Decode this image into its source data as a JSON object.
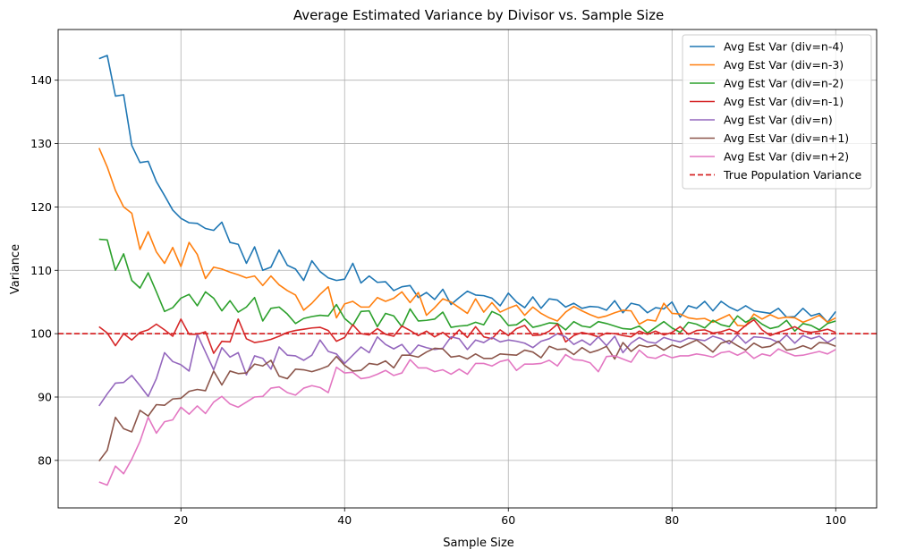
{
  "chart_data": {
    "type": "line",
    "title": "Average Estimated Variance by Divisor vs. Sample Size",
    "xlabel": "Sample Size",
    "ylabel": "Variance",
    "xlim": [
      5,
      105
    ],
    "ylim": [
      72.5,
      148
    ],
    "xticks": [
      20,
      40,
      60,
      80,
      100
    ],
    "yticks": [
      80,
      90,
      100,
      110,
      120,
      130,
      140
    ],
    "grid": true,
    "legend_position": "top-right",
    "x_start": 10,
    "series": [
      {
        "name": "Avg Est Var (div=n-4)",
        "color": "#1f77b4",
        "style": "solid",
        "values": [
          143.4,
          143.9,
          137.5,
          137.7,
          129.7,
          127.0,
          127.2,
          124.0,
          121.8,
          119.5,
          118.2,
          117.5,
          117.4,
          116.6,
          116.3,
          117.6,
          114.4,
          114.1,
          111.1,
          113.7,
          110.0,
          110.5,
          113.2,
          110.8,
          110.2,
          108.4,
          111.5,
          109.8,
          108.8,
          108.4,
          108.6,
          111.1,
          108.0,
          109.1,
          108.1,
          108.2,
          106.8,
          107.4,
          107.6,
          105.7,
          106.5,
          105.4,
          107.0,
          104.6,
          105.7,
          106.7,
          106.1,
          106.0,
          105.6,
          104.4,
          106.4,
          105.0,
          104.1,
          105.8,
          104.0,
          105.5,
          105.3,
          104.2,
          104.8,
          104.0,
          104.3,
          104.2,
          103.7,
          105.2,
          103.3,
          104.8,
          104.5,
          103.3,
          104.1,
          103.9,
          105.0,
          102.6,
          104.4,
          104.0,
          105.1,
          103.6,
          105.1,
          104.2,
          103.6,
          104.4,
          103.6,
          103.4,
          103.2,
          104.0,
          102.6,
          102.7,
          104.0,
          102.8,
          103.2,
          101.8,
          103.5
        ]
      },
      {
        "name": "Avg Est Var (div=n-3)",
        "color": "#ff7f0e",
        "style": "solid",
        "values": [
          129.3,
          126.3,
          122.6,
          120.0,
          119.0,
          113.3,
          116.1,
          112.9,
          111.1,
          113.6,
          110.6,
          114.4,
          112.5,
          108.7,
          110.5,
          110.2,
          109.7,
          109.3,
          108.8,
          109.1,
          107.6,
          109.1,
          107.7,
          106.8,
          106.1,
          103.7,
          104.8,
          106.2,
          107.4,
          102.5,
          104.7,
          105.1,
          104.2,
          104.2,
          105.7,
          105.1,
          105.6,
          106.6,
          104.9,
          106.5,
          102.9,
          104.1,
          105.5,
          105.0,
          104.1,
          103.2,
          105.5,
          103.4,
          104.9,
          103.4,
          104.0,
          104.5,
          102.9,
          104.2,
          103.2,
          102.5,
          102.0,
          103.4,
          104.3,
          103.6,
          103.0,
          102.5,
          102.8,
          103.3,
          103.7,
          103.6,
          101.5,
          102.2,
          102.0,
          104.8,
          103.2,
          103.1,
          102.5,
          102.3,
          102.4,
          101.8,
          102.4,
          103.0,
          101.3,
          101.2,
          103.1,
          102.3,
          103.0,
          102.4,
          102.6,
          102.5,
          101.8,
          102.3,
          102.9,
          101.8,
          102.5
        ]
      },
      {
        "name": "Avg Est Var (div=n-2)",
        "color": "#2ca02c",
        "style": "solid",
        "values": [
          114.9,
          114.8,
          110.0,
          112.6,
          108.4,
          107.2,
          109.6,
          106.6,
          103.5,
          104.1,
          105.6,
          106.2,
          104.4,
          106.6,
          105.6,
          103.6,
          105.2,
          103.4,
          104.2,
          105.7,
          102.0,
          104.0,
          104.2,
          103.1,
          101.6,
          102.4,
          102.7,
          102.9,
          102.8,
          104.6,
          102.4,
          101.3,
          103.5,
          103.6,
          101.1,
          103.2,
          102.8,
          101.1,
          103.9,
          102.0,
          102.1,
          102.3,
          103.4,
          101.0,
          101.2,
          101.3,
          101.8,
          101.4,
          103.5,
          102.9,
          101.3,
          101.4,
          102.3,
          101.0,
          101.3,
          101.7,
          101.6,
          100.6,
          101.9,
          101.2,
          101.0,
          101.9,
          101.6,
          101.2,
          100.8,
          100.7,
          101.2,
          100.1,
          101.0,
          101.9,
          100.9,
          100.2,
          101.8,
          101.5,
          100.9,
          102.1,
          101.4,
          101.1,
          102.8,
          101.8,
          102.5,
          101.5,
          100.8,
          101.1,
          102.1,
          100.4,
          101.6,
          101.3,
          100.6,
          101.6,
          102.0
        ]
      },
      {
        "name": "Avg Est Var (div=n-1)",
        "color": "#d62728",
        "style": "solid",
        "values": [
          101.1,
          100.1,
          98.1,
          100.0,
          99.0,
          100.2,
          100.6,
          101.5,
          100.6,
          99.6,
          102.3,
          99.9,
          99.9,
          100.3,
          96.9,
          98.8,
          98.7,
          102.3,
          99.2,
          98.6,
          98.8,
          99.1,
          99.6,
          100.2,
          100.5,
          100.7,
          100.9,
          101.0,
          100.5,
          98.8,
          99.4,
          101.4,
          100.0,
          99.8,
          100.8,
          99.9,
          99.6,
          101.2,
          100.5,
          99.7,
          100.4,
          99.5,
          100.2,
          99.2,
          100.6,
          99.4,
          101.1,
          99.5,
          99.2,
          100.6,
          99.7,
          100.8,
          101.3,
          99.7,
          99.8,
          100.4,
          101.5,
          98.7,
          99.7,
          100.2,
          99.9,
          99.5,
          100.1,
          100.0,
          99.7,
          99.5,
          100.4,
          99.9,
          100.4,
          99.8,
          100.2,
          101.1,
          99.9,
          100.5,
          100.6,
          100.1,
          100.3,
          100.7,
          100.2,
          101.3,
          102.2,
          100.6,
          99.7,
          100.2,
          100.6,
          101.1,
          100.4,
          100.2,
          100.4,
          100.7,
          100.2
        ]
      },
      {
        "name": "Avg Est Var (div=n)",
        "color": "#9467bd",
        "style": "solid",
        "values": [
          88.6,
          90.5,
          92.2,
          92.3,
          93.4,
          91.8,
          90.1,
          92.9,
          97.0,
          95.6,
          95.1,
          94.1,
          99.9,
          97.1,
          94.3,
          97.8,
          96.3,
          97.0,
          93.5,
          96.5,
          96.1,
          94.4,
          97.9,
          96.6,
          96.5,
          95.8,
          96.6,
          99.0,
          97.2,
          96.8,
          95.3,
          96.6,
          97.9,
          97.0,
          99.5,
          98.3,
          97.6,
          98.3,
          96.7,
          98.2,
          97.8,
          97.5,
          97.7,
          99.5,
          99.2,
          97.5,
          99.0,
          98.6,
          99.4,
          98.7,
          99.0,
          98.8,
          98.5,
          97.8,
          98.8,
          99.2,
          100.0,
          99.5,
          98.3,
          99.0,
          98.2,
          99.5,
          98.1,
          99.6,
          97.0,
          98.5,
          99.4,
          98.7,
          98.5,
          99.4,
          99.0,
          98.7,
          99.3,
          99.1,
          98.9,
          99.6,
          99.2,
          98.4,
          99.8,
          98.5,
          99.5,
          99.4,
          99.2,
          98.6,
          99.8,
          98.5,
          99.7,
          99.2,
          99.6,
          98.6,
          99.4
        ]
      },
      {
        "name": "Avg Est Var (div=n+1)",
        "color": "#8c564b",
        "style": "solid",
        "values": [
          79.9,
          81.6,
          86.8,
          85.0,
          84.5,
          87.9,
          87.0,
          88.8,
          88.7,
          89.7,
          89.8,
          90.9,
          91.2,
          91.0,
          94.1,
          91.9,
          94.1,
          93.7,
          93.8,
          95.2,
          94.9,
          95.8,
          93.3,
          92.9,
          94.4,
          94.3,
          94.0,
          94.4,
          94.9,
          96.4,
          95.0,
          94.1,
          94.2,
          95.3,
          95.1,
          95.7,
          94.6,
          96.6,
          96.6,
          96.3,
          97.1,
          97.7,
          97.6,
          96.3,
          96.5,
          96.0,
          96.8,
          96.1,
          96.1,
          96.8,
          96.7,
          96.6,
          97.4,
          97.1,
          96.2,
          98.0,
          97.5,
          97.6,
          96.7,
          97.8,
          97.0,
          97.4,
          98.0,
          96.0,
          98.6,
          97.2,
          98.2,
          97.9,
          98.2,
          97.4,
          98.2,
          97.8,
          98.4,
          99.0,
          98.1,
          97.1,
          98.5,
          98.9,
          98.1,
          97.4,
          98.5,
          97.8,
          98.0,
          98.8,
          97.4,
          97.6,
          98.1,
          97.6,
          98.6,
          98.5,
          98.0
        ]
      },
      {
        "name": "Avg Est Var (div=n+2)",
        "color": "#e377c2",
        "style": "solid",
        "values": [
          76.6,
          76.1,
          79.1,
          77.9,
          80.2,
          83.0,
          86.8,
          84.3,
          86.1,
          86.4,
          88.4,
          87.3,
          88.6,
          87.4,
          89.2,
          90.1,
          88.9,
          88.4,
          89.2,
          90.0,
          90.1,
          91.4,
          91.6,
          90.7,
          90.3,
          91.4,
          91.8,
          91.5,
          90.7,
          94.7,
          93.8,
          93.9,
          92.9,
          93.1,
          93.6,
          94.2,
          93.4,
          93.8,
          95.9,
          94.6,
          94.6,
          94.0,
          94.3,
          93.6,
          94.4,
          93.6,
          95.3,
          95.3,
          94.9,
          95.6,
          95.9,
          94.2,
          95.2,
          95.2,
          95.3,
          95.8,
          94.9,
          96.7,
          95.9,
          95.8,
          95.4,
          94.0,
          96.4,
          96.5,
          96.0,
          95.5,
          97.4,
          96.3,
          96.1,
          96.7,
          96.2,
          96.5,
          96.5,
          96.8,
          96.6,
          96.3,
          97.0,
          97.2,
          96.6,
          97.2,
          96.1,
          96.8,
          96.5,
          97.6,
          97.0,
          96.5,
          96.6,
          96.9,
          97.2,
          96.8,
          97.5
        ]
      },
      {
        "name": "True Population Variance",
        "color": "#d62728",
        "style": "dashed",
        "constant": 100
      }
    ]
  }
}
